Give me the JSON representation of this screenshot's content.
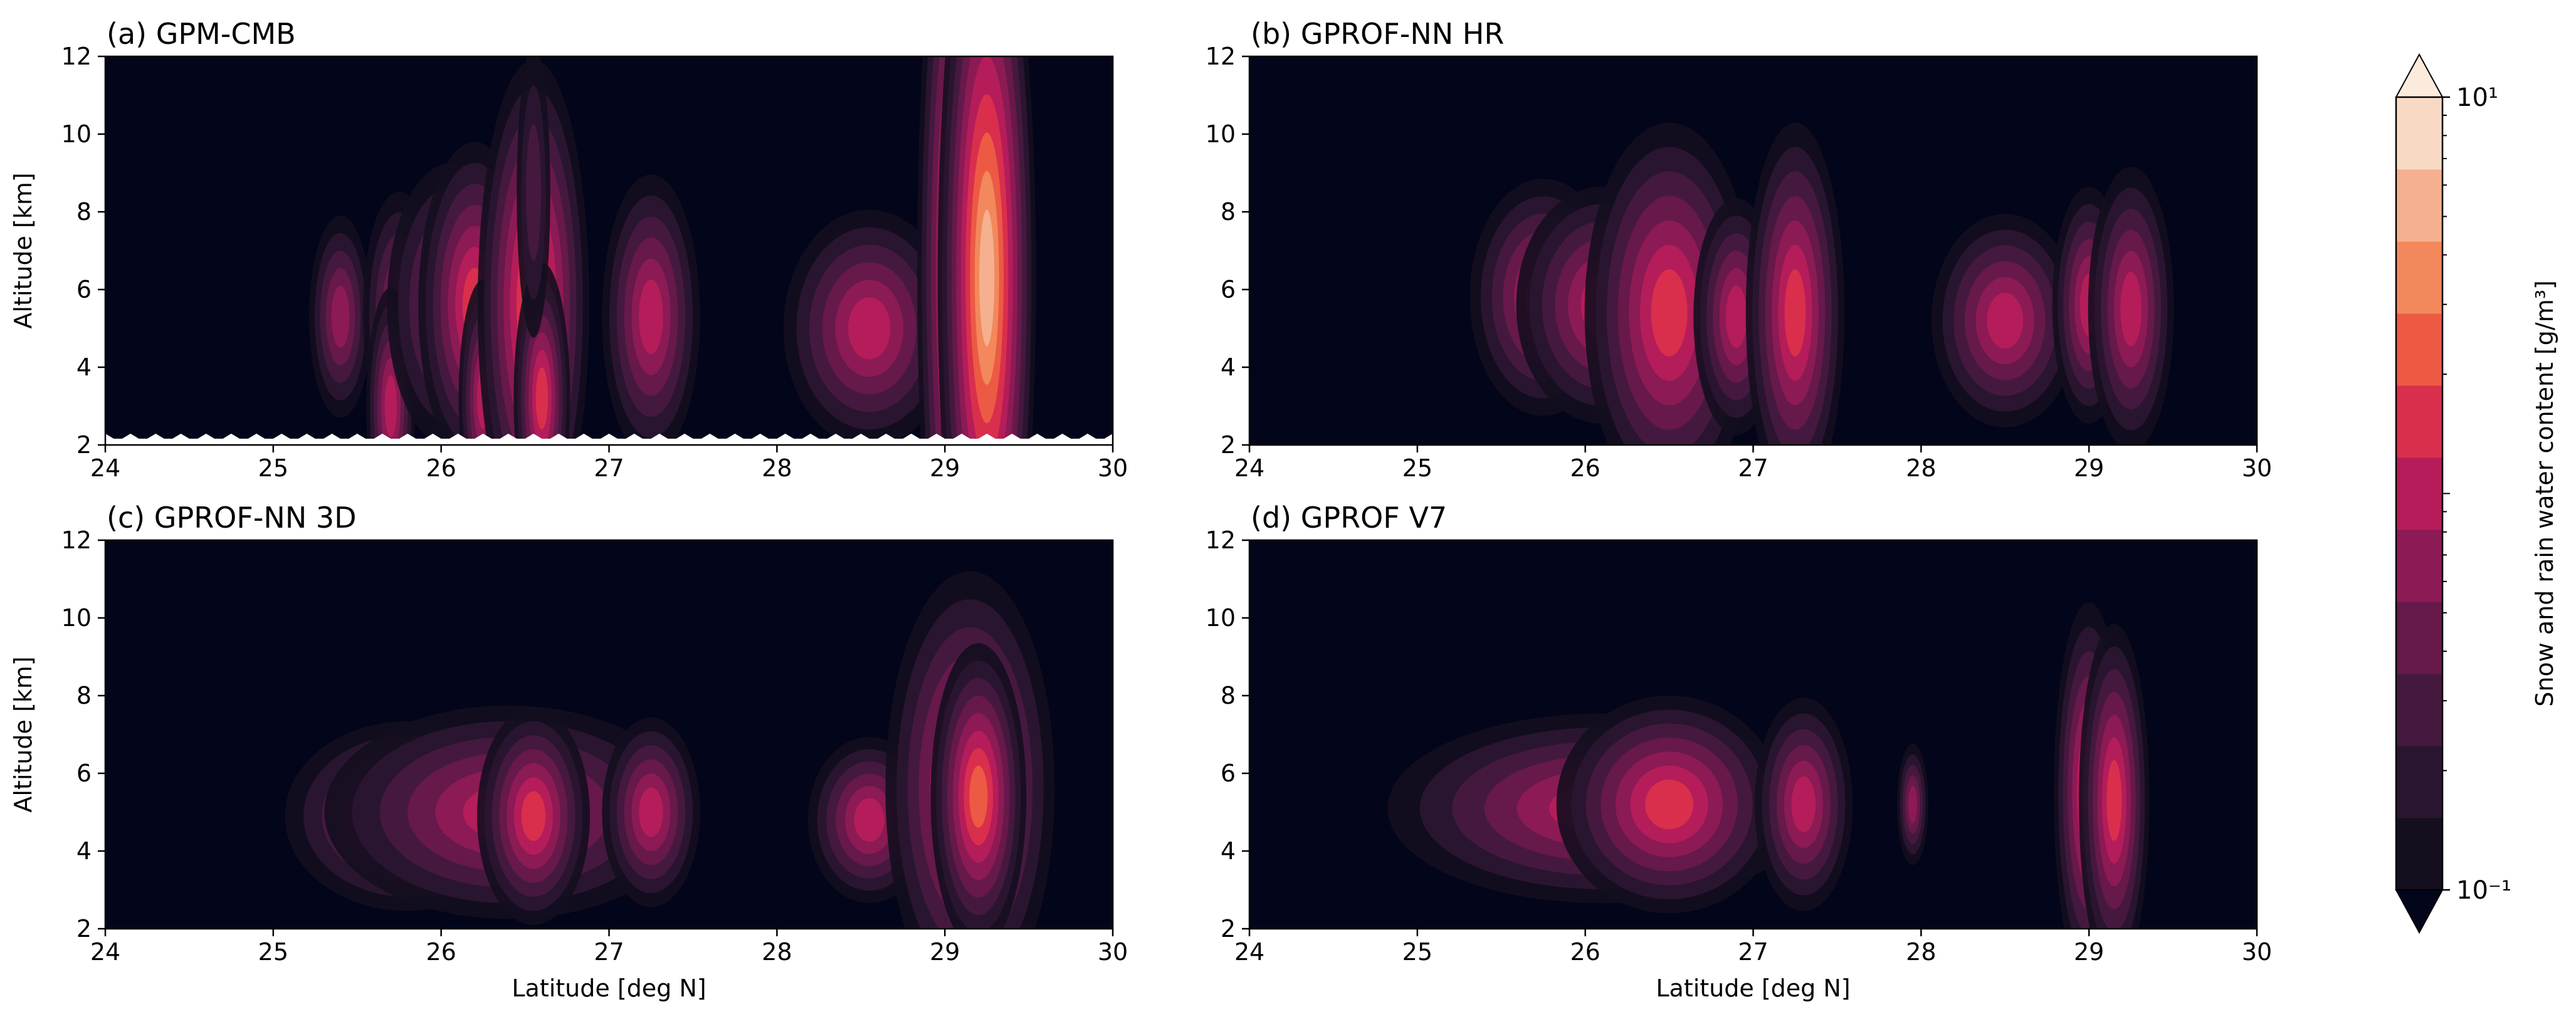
{
  "chart_data": [
    {
      "type": "heatmap",
      "title": "(a) GPM-CMB",
      "xlabel": "",
      "ylabel": "Altitude [km]",
      "xlim": [
        24,
        30
      ],
      "ylim": [
        2,
        12
      ],
      "xticks": [
        "24",
        "25",
        "26",
        "27",
        "28",
        "29",
        "30"
      ],
      "yticks": [
        "2",
        "4",
        "6",
        "8",
        "10",
        "12"
      ],
      "surface_mask": true,
      "cells": [
        {
          "lat": 25.4,
          "alt": 5.3,
          "w": 0.06,
          "h": 1.0,
          "level": 4
        },
        {
          "lat": 25.75,
          "alt": 5.4,
          "w": 0.07,
          "h": 1.2,
          "level": 4
        },
        {
          "lat": 25.7,
          "alt": 3.0,
          "w": 0.04,
          "h": 1.0,
          "level": 5
        },
        {
          "lat": 26.05,
          "alt": 5.6,
          "w": 0.12,
          "h": 1.4,
          "level": 4
        },
        {
          "lat": 26.2,
          "alt": 5.6,
          "w": 0.08,
          "h": 1.2,
          "level": 6
        },
        {
          "lat": 26.25,
          "alt": 3.2,
          "w": 0.04,
          "h": 1.0,
          "level": 5
        },
        {
          "lat": 26.55,
          "alt": 5.6,
          "w": 0.07,
          "h": 1.6,
          "level": 7
        },
        {
          "lat": 26.6,
          "alt": 3.2,
          "w": 0.04,
          "h": 1.0,
          "level": 6
        },
        {
          "lat": 26.55,
          "alt": 8.5,
          "w": 0.05,
          "h": 2.2,
          "level": 2
        },
        {
          "lat": 27.25,
          "alt": 5.3,
          "w": 0.08,
          "h": 1.2,
          "level": 5
        },
        {
          "lat": 28.55,
          "alt": 5.0,
          "w": 0.14,
          "h": 1.0,
          "level": 5
        },
        {
          "lat": 29.1,
          "alt": 6.5,
          "w": 0.05,
          "h": 2.6,
          "level": 8
        },
        {
          "lat": 29.25,
          "alt": 6.3,
          "w": 0.05,
          "h": 2.2,
          "level": 9
        }
      ]
    },
    {
      "type": "heatmap",
      "title": "(b) GPROF-NN HR",
      "xlabel": "",
      "ylabel": "",
      "xlim": [
        24,
        30
      ],
      "ylim": [
        2,
        12
      ],
      "xticks": [
        "24",
        "25",
        "26",
        "27",
        "28",
        "29",
        "30"
      ],
      "yticks": [
        "2",
        "4",
        "6",
        "8",
        "10",
        "12"
      ],
      "surface_mask": false,
      "cells": [
        {
          "lat": 25.75,
          "alt": 5.8,
          "w": 0.12,
          "h": 1.0,
          "level": 5
        },
        {
          "lat": 26.1,
          "alt": 5.6,
          "w": 0.14,
          "h": 1.0,
          "level": 5
        },
        {
          "lat": 26.5,
          "alt": 5.4,
          "w": 0.12,
          "h": 1.4,
          "level": 6
        },
        {
          "lat": 26.9,
          "alt": 5.3,
          "w": 0.07,
          "h": 1.0,
          "level": 5
        },
        {
          "lat": 27.25,
          "alt": 5.4,
          "w": 0.07,
          "h": 1.4,
          "level": 6
        },
        {
          "lat": 28.5,
          "alt": 5.2,
          "w": 0.12,
          "h": 0.9,
          "level": 5
        },
        {
          "lat": 29.0,
          "alt": 5.6,
          "w": 0.06,
          "h": 1.0,
          "level": 5
        },
        {
          "lat": 29.25,
          "alt": 5.5,
          "w": 0.07,
          "h": 1.2,
          "level": 5
        }
      ]
    },
    {
      "type": "heatmap",
      "title": "(c) GPROF-NN 3D",
      "xlabel": "Latitude [deg N]",
      "ylabel": "Altitude [km]",
      "xlim": [
        24,
        30
      ],
      "ylim": [
        2,
        12
      ],
      "xticks": [
        "24",
        "25",
        "26",
        "27",
        "28",
        "29",
        "30"
      ],
      "yticks": [
        "2",
        "4",
        "6",
        "8",
        "10",
        "12"
      ],
      "surface_mask": false,
      "cells": [
        {
          "lat": 25.8,
          "alt": 4.9,
          "w": 0.2,
          "h": 0.8,
          "level": 5
        },
        {
          "lat": 26.4,
          "alt": 5.0,
          "w": 0.3,
          "h": 0.9,
          "level": 5
        },
        {
          "lat": 26.55,
          "alt": 4.9,
          "w": 0.08,
          "h": 0.8,
          "level": 6
        },
        {
          "lat": 27.25,
          "alt": 5.0,
          "w": 0.08,
          "h": 0.8,
          "level": 5
        },
        {
          "lat": 28.55,
          "alt": 4.8,
          "w": 0.1,
          "h": 0.7,
          "level": 5
        },
        {
          "lat": 29.15,
          "alt": 5.6,
          "w": 0.12,
          "h": 1.6,
          "level": 6
        },
        {
          "lat": 29.2,
          "alt": 5.4,
          "w": 0.06,
          "h": 1.0,
          "level": 7
        }
      ]
    },
    {
      "type": "heatmap",
      "title": "(d) GPROF V7",
      "xlabel": "Latitude [deg N]",
      "ylabel": "",
      "xlim": [
        24,
        30
      ],
      "ylim": [
        2,
        12
      ],
      "xticks": [
        "24",
        "25",
        "26",
        "27",
        "28",
        "29",
        "30"
      ],
      "yticks": [
        "2",
        "4",
        "6",
        "8",
        "10",
        "12"
      ],
      "surface_mask": false,
      "cells": [
        {
          "lat": 26.1,
          "alt": 5.1,
          "w": 0.35,
          "h": 0.8,
          "level": 5
        },
        {
          "lat": 26.5,
          "alt": 5.2,
          "w": 0.16,
          "h": 0.8,
          "level": 6
        },
        {
          "lat": 27.3,
          "alt": 5.2,
          "w": 0.08,
          "h": 0.9,
          "level": 5
        },
        {
          "lat": 27.95,
          "alt": 5.2,
          "w": 0.03,
          "h": 0.6,
          "level": 4
        },
        {
          "lat": 29.0,
          "alt": 5.5,
          "w": 0.05,
          "h": 1.4,
          "level": 6
        },
        {
          "lat": 29.15,
          "alt": 5.3,
          "w": 0.05,
          "h": 1.3,
          "level": 6
        }
      ]
    }
  ],
  "colorbar": {
    "label": "Snow and rain water content [g/m³]",
    "ticks": [
      "10¹",
      "10⁻¹"
    ],
    "scale": "log",
    "range": [
      0.1,
      10
    ],
    "levels": [
      "#140e1f",
      "#2a1530",
      "#45193f",
      "#66194a",
      "#8c1a55",
      "#b41d59",
      "#d92f4d",
      "#ec5a44",
      "#f2885c",
      "#f5b08f",
      "#f8dac4"
    ],
    "extend_low": "#03051a",
    "extend_high": "#faebdd"
  },
  "colors": {
    "background": "#03051a",
    "mask": "#ffffff",
    "axes": "#000000"
  }
}
